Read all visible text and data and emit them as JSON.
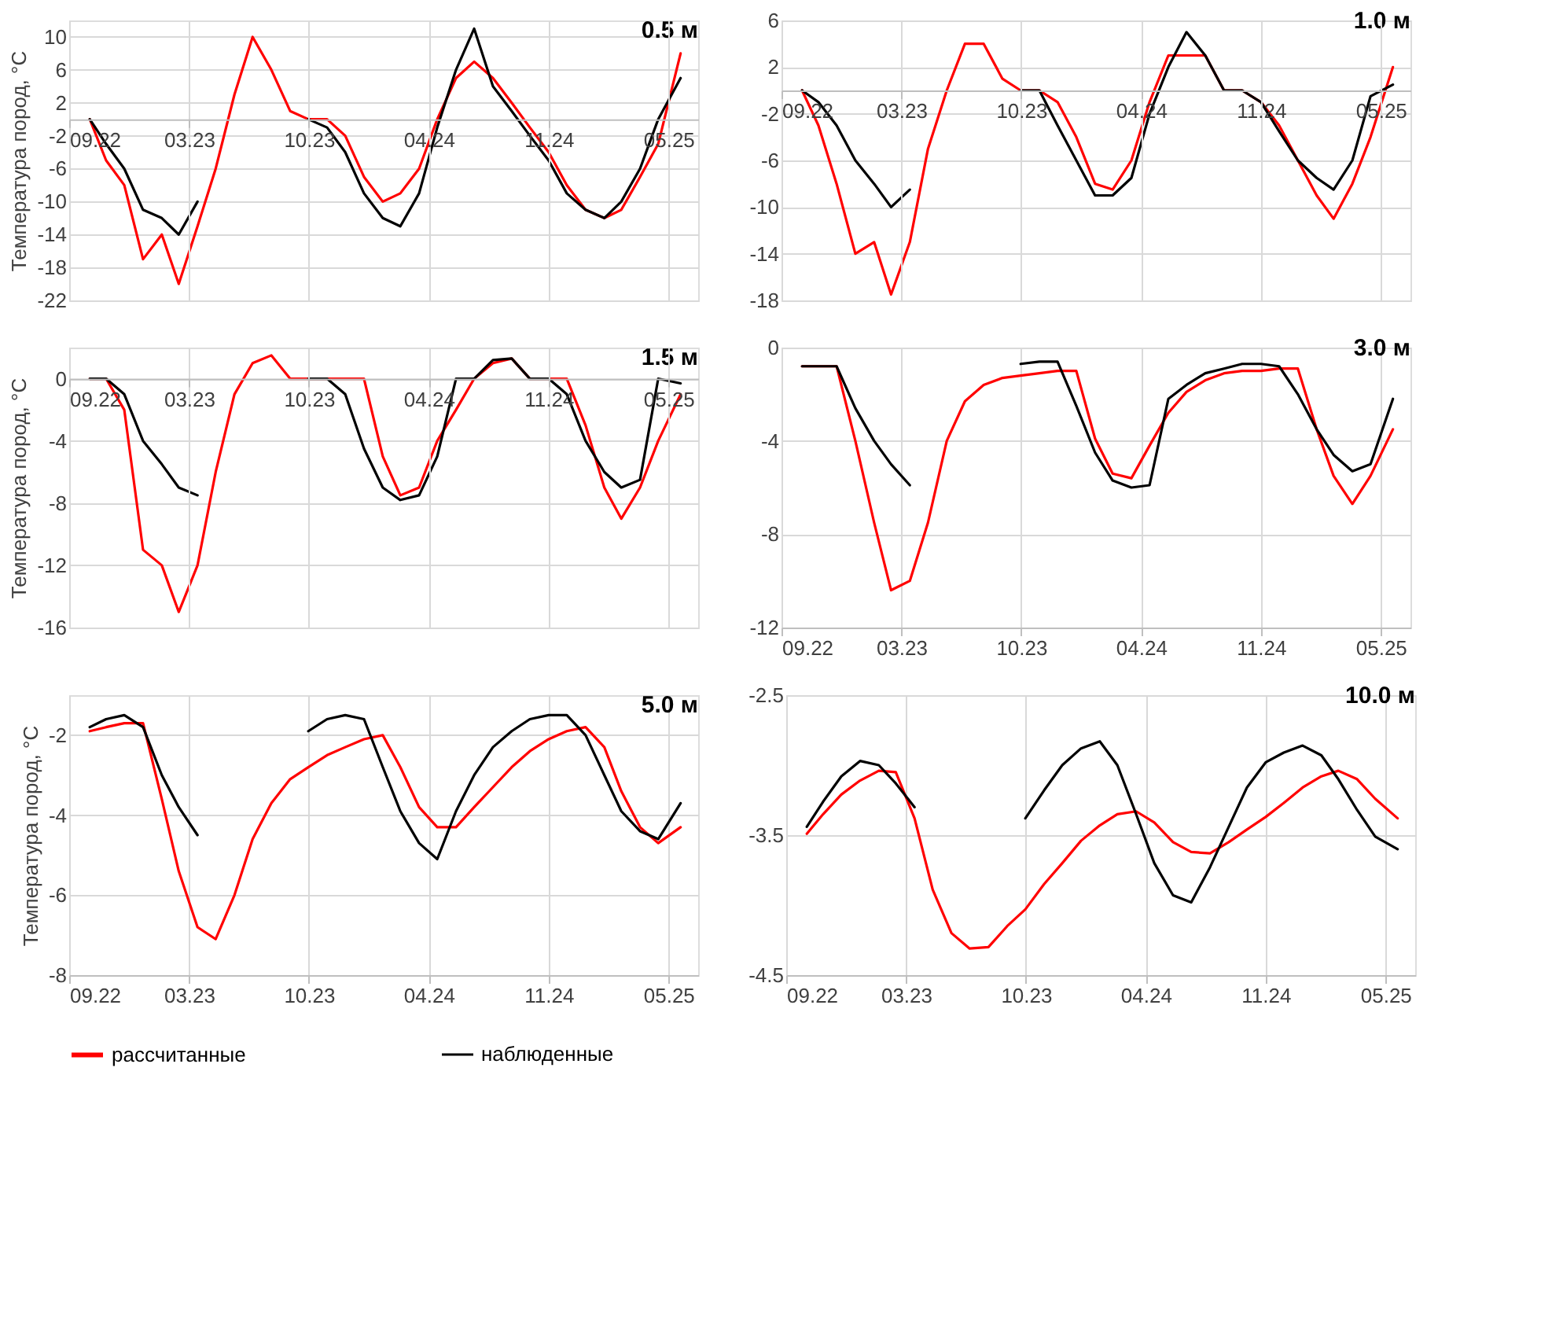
{
  "chart_data": [
    {
      "type": "line",
      "title": "0.5 м",
      "ylabel": "Температура пород, °C",
      "grid": true,
      "legend": "bottom",
      "x": [
        "2022-10-05",
        "2022-11-01",
        "2022-12-01",
        "2023-01-01",
        "2023-02-01",
        "2023-03-01",
        "2023-04-01",
        "2023-05-01",
        "2023-06-01",
        "2023-07-01",
        "2023-08-01",
        "2023-09-01",
        "2023-10-01",
        "2023-11-01",
        "2023-12-01",
        "2024-01-01",
        "2024-02-01",
        "2024-03-01",
        "2024-04-01",
        "2024-05-01",
        "2024-06-01",
        "2024-07-01",
        "2024-08-01",
        "2024-09-01",
        "2024-10-01",
        "2024-11-01",
        "2024-12-01",
        "2025-01-01",
        "2025-02-01",
        "2025-03-01",
        "2025-04-01",
        "2025-05-01",
        "2025-06-07"
      ],
      "xlim": [
        "2022-09-01",
        "2025-07-06"
      ],
      "xticks": [
        {
          "value": "2022-09-01",
          "label": "09.22"
        },
        {
          "value": "2023-03-18",
          "label": "03.23"
        },
        {
          "value": "2023-10-02",
          "label": "10.23"
        },
        {
          "value": "2024-04-17",
          "label": "04.24"
        },
        {
          "value": "2024-11-01",
          "label": "11.24"
        },
        {
          "value": "2025-05-18",
          "label": "05.25"
        }
      ],
      "ylim": [
        -22,
        12
      ],
      "yticks": [
        -22,
        -18,
        -14,
        -10,
        -6,
        -2,
        2,
        6,
        10
      ],
      "series": [
        {
          "name": "рассчитанные",
          "color": "#ff0000",
          "values": [
            0,
            -5,
            -8,
            -17,
            -14,
            -20,
            -13,
            -6,
            3,
            10,
            6,
            1,
            0,
            0,
            -2,
            -7,
            -10,
            -9,
            -6,
            0,
            5,
            7,
            5,
            2,
            -1,
            -4,
            -8,
            -11,
            -12,
            -11,
            -7,
            -3,
            8
          ]
        },
        {
          "name": "наблюденные",
          "color": "#000000",
          "values": [
            0,
            -3,
            -6,
            -11,
            -12,
            -14,
            -10,
            null,
            null,
            null,
            null,
            null,
            0,
            -1,
            -4,
            -9,
            -12,
            -13,
            -9,
            -1,
            6,
            11,
            4,
            1,
            -2,
            -5,
            -9,
            -11,
            -12,
            -10,
            -6,
            0,
            5
          ]
        }
      ]
    },
    {
      "type": "line",
      "title": "1.0 м",
      "grid": true,
      "legend": "bottom",
      "x": [
        "2022-10-05",
        "2022-11-01",
        "2022-12-01",
        "2023-01-01",
        "2023-02-01",
        "2023-03-01",
        "2023-04-01",
        "2023-05-01",
        "2023-06-01",
        "2023-07-01",
        "2023-08-01",
        "2023-09-01",
        "2023-10-01",
        "2023-11-01",
        "2023-12-01",
        "2024-01-01",
        "2024-02-01",
        "2024-03-01",
        "2024-04-01",
        "2024-05-01",
        "2024-06-01",
        "2024-07-01",
        "2024-08-01",
        "2024-09-01",
        "2024-10-01",
        "2024-11-01",
        "2024-12-01",
        "2025-01-01",
        "2025-02-01",
        "2025-03-01",
        "2025-04-01",
        "2025-05-01",
        "2025-06-07"
      ],
      "xlim": [
        "2022-09-01",
        "2025-07-06"
      ],
      "xticks": [
        {
          "value": "2022-09-01",
          "label": "09.22"
        },
        {
          "value": "2023-03-18",
          "label": "03.23"
        },
        {
          "value": "2023-10-02",
          "label": "10.23"
        },
        {
          "value": "2024-04-17",
          "label": "04.24"
        },
        {
          "value": "2024-11-01",
          "label": "11.24"
        },
        {
          "value": "2025-05-18",
          "label": "05.25"
        }
      ],
      "ylim": [
        -18,
        6
      ],
      "yticks": [
        -18,
        -14,
        -10,
        -6,
        -2,
        2,
        6
      ],
      "series": [
        {
          "name": "рассчитанные",
          "color": "#ff0000",
          "values": [
            0,
            -3,
            -8,
            -14,
            -13,
            -17.5,
            -13,
            -5,
            0,
            4,
            4,
            1,
            0,
            0,
            -1,
            -4,
            -8,
            -8.5,
            -6,
            -1,
            3,
            3,
            3,
            0,
            0,
            -1,
            -3,
            -6,
            -9,
            -11,
            -8,
            -4,
            2
          ]
        },
        {
          "name": "наблюденные",
          "color": "#000000",
          "values": [
            0,
            -1,
            -3,
            -6,
            -8,
            -10,
            -8.5,
            null,
            null,
            null,
            null,
            null,
            0,
            0,
            -3,
            -6,
            -9,
            -9,
            -7.5,
            -2,
            2,
            5,
            3,
            0,
            0,
            -1,
            -3.5,
            -6,
            -7.5,
            -8.5,
            -6,
            -0.5,
            0.5
          ]
        }
      ]
    },
    {
      "type": "line",
      "title": "1.5 м",
      "ylabel": "Температура пород, °C",
      "grid": true,
      "legend": "bottom",
      "x": [
        "2022-10-05",
        "2022-11-01",
        "2022-12-01",
        "2023-01-01",
        "2023-02-01",
        "2023-03-01",
        "2023-04-01",
        "2023-05-01",
        "2023-06-01",
        "2023-07-01",
        "2023-08-01",
        "2023-09-01",
        "2023-10-01",
        "2023-11-01",
        "2023-12-01",
        "2024-01-01",
        "2024-02-01",
        "2024-03-01",
        "2024-04-01",
        "2024-05-01",
        "2024-06-01",
        "2024-07-01",
        "2024-08-01",
        "2024-09-01",
        "2024-10-01",
        "2024-11-01",
        "2024-12-01",
        "2025-01-01",
        "2025-02-01",
        "2025-03-01",
        "2025-04-01",
        "2025-05-01",
        "2025-06-07"
      ],
      "xlim": [
        "2022-09-01",
        "2025-07-06"
      ],
      "xticks": [
        {
          "value": "2022-09-01",
          "label": "09.22"
        },
        {
          "value": "2023-03-18",
          "label": "03.23"
        },
        {
          "value": "2023-10-02",
          "label": "10.23"
        },
        {
          "value": "2024-04-17",
          "label": "04.24"
        },
        {
          "value": "2024-11-01",
          "label": "11.24"
        },
        {
          "value": "2025-05-18",
          "label": "05.25"
        }
      ],
      "ylim": [
        -16,
        2
      ],
      "yticks": [
        -16,
        -12,
        -8,
        -4,
        0
      ],
      "series": [
        {
          "name": "рассчитанные",
          "color": "#ff0000",
          "values": [
            0,
            0,
            -2,
            -11,
            -12,
            -15,
            -12,
            -6,
            -1,
            1,
            1.5,
            0,
            0,
            0,
            0,
            0,
            -5,
            -7.5,
            -7,
            -4,
            -2,
            0,
            1,
            1.3,
            0,
            0,
            0,
            -3,
            -7,
            -9,
            -7,
            -4,
            -1
          ]
        },
        {
          "name": "наблюденные",
          "color": "#000000",
          "values": [
            0,
            0,
            -1,
            -4,
            -5.5,
            -7,
            -7.5,
            null,
            null,
            null,
            null,
            null,
            0,
            0,
            -1,
            -4.5,
            -7,
            -7.8,
            -7.5,
            -5,
            0,
            0,
            1.2,
            1.3,
            0,
            0,
            -1,
            -4,
            -6,
            -7,
            -6.5,
            0,
            -0.3
          ]
        }
      ]
    },
    {
      "type": "line",
      "title": "3.0 м",
      "grid": true,
      "legend": "bottom",
      "x": [
        "2022-10-05",
        "2022-11-01",
        "2022-12-01",
        "2023-01-01",
        "2023-02-01",
        "2023-03-01",
        "2023-04-01",
        "2023-05-01",
        "2023-06-01",
        "2023-07-01",
        "2023-08-01",
        "2023-09-01",
        "2023-10-01",
        "2023-11-01",
        "2023-12-01",
        "2024-01-01",
        "2024-02-01",
        "2024-03-01",
        "2024-04-01",
        "2024-05-01",
        "2024-06-01",
        "2024-07-01",
        "2024-08-01",
        "2024-09-01",
        "2024-10-01",
        "2024-11-01",
        "2024-12-01",
        "2025-01-01",
        "2025-02-01",
        "2025-03-01",
        "2025-04-01",
        "2025-05-01",
        "2025-06-07"
      ],
      "xlim": [
        "2022-09-01",
        "2025-07-06"
      ],
      "xticks": [
        {
          "value": "2022-09-01",
          "label": "09.22"
        },
        {
          "value": "2023-03-18",
          "label": "03.23"
        },
        {
          "value": "2023-10-02",
          "label": "10.23"
        },
        {
          "value": "2024-04-17",
          "label": "04.24"
        },
        {
          "value": "2024-11-01",
          "label": "11.24"
        },
        {
          "value": "2025-05-18",
          "label": "05.25"
        }
      ],
      "ylim": [
        -12,
        0
      ],
      "yticks": [
        -12,
        -8,
        -4,
        0
      ],
      "series": [
        {
          "name": "рассчитанные",
          "color": "#ff0000",
          "values": [
            -0.8,
            -0.8,
            -0.8,
            -4,
            -7.5,
            -10.4,
            -10,
            -7.5,
            -4,
            -2.3,
            -1.6,
            -1.3,
            -1.2,
            -1.1,
            -1,
            -1,
            -3.9,
            -5.4,
            -5.6,
            -4.2,
            -2.8,
            -1.9,
            -1.4,
            -1.1,
            -1,
            -1,
            -0.9,
            -0.9,
            -3.5,
            -5.5,
            -6.7,
            -5.5,
            -3.5
          ]
        },
        {
          "name": "наблюденные",
          "color": "#000000",
          "values": [
            -0.8,
            -0.8,
            -0.8,
            -2.6,
            -4,
            -5,
            -5.9,
            null,
            null,
            null,
            null,
            null,
            -0.7,
            -0.6,
            -0.6,
            -2.5,
            -4.5,
            -5.7,
            -6,
            -5.9,
            -2.2,
            -1.6,
            -1.1,
            -0.9,
            -0.7,
            -0.7,
            -0.8,
            -2,
            -3.5,
            -4.6,
            -5.3,
            -5,
            -2.2
          ]
        }
      ]
    },
    {
      "type": "line",
      "title": "5.0 м",
      "ylabel": "Температура пород, °C",
      "grid": true,
      "legend": "bottom",
      "x": [
        "2022-10-05",
        "2022-11-01",
        "2022-12-01",
        "2023-01-01",
        "2023-02-01",
        "2023-03-01",
        "2023-04-01",
        "2023-05-01",
        "2023-06-01",
        "2023-07-01",
        "2023-08-01",
        "2023-09-01",
        "2023-10-01",
        "2023-11-01",
        "2023-12-01",
        "2024-01-01",
        "2024-02-01",
        "2024-03-01",
        "2024-04-01",
        "2024-05-01",
        "2024-06-01",
        "2024-07-01",
        "2024-08-01",
        "2024-09-01",
        "2024-10-01",
        "2024-11-01",
        "2024-12-01",
        "2025-01-01",
        "2025-02-01",
        "2025-03-01",
        "2025-04-01",
        "2025-05-01",
        "2025-06-07"
      ],
      "xlim": [
        "2022-09-01",
        "2025-07-06"
      ],
      "xticks": [
        {
          "value": "2022-09-01",
          "label": "09.22"
        },
        {
          "value": "2023-03-18",
          "label": "03.23"
        },
        {
          "value": "2023-10-02",
          "label": "10.23"
        },
        {
          "value": "2024-04-17",
          "label": "04.24"
        },
        {
          "value": "2024-11-01",
          "label": "11.24"
        },
        {
          "value": "2025-05-18",
          "label": "05.25"
        }
      ],
      "ylim": [
        -8,
        -1
      ],
      "yticks": [
        -8,
        -6,
        -4,
        -2
      ],
      "series": [
        {
          "name": "рассчитанные",
          "color": "#ff0000",
          "values": [
            -1.9,
            -1.8,
            -1.7,
            -1.7,
            -3.6,
            -5.4,
            -6.8,
            -7.1,
            -6,
            -4.6,
            -3.7,
            -3.1,
            -2.8,
            -2.5,
            -2.3,
            -2.1,
            -2,
            -2.8,
            -3.8,
            -4.3,
            -4.3,
            -3.8,
            -3.3,
            -2.8,
            -2.4,
            -2.1,
            -1.9,
            -1.8,
            -2.3,
            -3.4,
            -4.3,
            -4.7,
            -4.3
          ]
        },
        {
          "name": "наблюденные",
          "color": "#000000",
          "values": [
            -1.8,
            -1.6,
            -1.5,
            -1.8,
            -3,
            -3.8,
            -4.5,
            null,
            null,
            null,
            null,
            null,
            -1.9,
            -1.6,
            -1.5,
            -1.6,
            -2.8,
            -3.9,
            -4.7,
            -5.1,
            -3.9,
            -3,
            -2.3,
            -1.9,
            -1.6,
            -1.5,
            -1.5,
            -2,
            -3,
            -3.9,
            -4.4,
            -4.6,
            -3.7
          ]
        }
      ]
    },
    {
      "type": "line",
      "title": "10.0 м",
      "grid": true,
      "legend": "bottom",
      "x": [
        "2022-10-05",
        "2022-11-01",
        "2022-12-01",
        "2023-01-01",
        "2023-02-01",
        "2023-03-01",
        "2023-04-01",
        "2023-05-01",
        "2023-06-01",
        "2023-07-01",
        "2023-08-01",
        "2023-09-01",
        "2023-10-01",
        "2023-11-01",
        "2023-12-01",
        "2024-01-01",
        "2024-02-01",
        "2024-03-01",
        "2024-04-01",
        "2024-05-01",
        "2024-06-01",
        "2024-07-01",
        "2024-08-01",
        "2024-09-01",
        "2024-10-01",
        "2024-11-01",
        "2024-12-01",
        "2025-01-01",
        "2025-02-01",
        "2025-03-01",
        "2025-04-01",
        "2025-05-01",
        "2025-06-07"
      ],
      "xlim": [
        "2022-09-01",
        "2025-07-06"
      ],
      "xticks": [
        {
          "value": "2022-09-01",
          "label": "09.22"
        },
        {
          "value": "2023-03-18",
          "label": "03.23"
        },
        {
          "value": "2023-10-02",
          "label": "10.23"
        },
        {
          "value": "2024-04-17",
          "label": "04.24"
        },
        {
          "value": "2024-11-01",
          "label": "11.24"
        },
        {
          "value": "2025-05-18",
          "label": "05.25"
        }
      ],
      "ylim": [
        -4.5,
        -2.5
      ],
      "yticks": [
        -4.5,
        -3.5,
        -2.5
      ],
      "series": [
        {
          "name": "рассчитанные",
          "color": "#ff0000",
          "values": [
            -3.49,
            -3.35,
            -3.21,
            -3.11,
            -3.04,
            -3.05,
            -3.38,
            -3.89,
            -4.2,
            -4.31,
            -4.3,
            -4.15,
            -4.03,
            -3.85,
            -3.7,
            -3.54,
            -3.43,
            -3.35,
            -3.33,
            -3.41,
            -3.55,
            -3.62,
            -3.63,
            -3.55,
            -3.46,
            -3.37,
            -3.27,
            -3.16,
            -3.08,
            -3.04,
            -3.1,
            -3.24,
            -3.38
          ]
        },
        {
          "name": "наблюденные",
          "color": "#000000",
          "values": [
            -3.44,
            -3.26,
            -3.08,
            -2.97,
            -3.0,
            -3.13,
            -3.3,
            null,
            null,
            null,
            null,
            null,
            -3.38,
            -3.18,
            -3.0,
            -2.88,
            -2.83,
            -3.0,
            -3.35,
            -3.7,
            -3.93,
            -3.98,
            -3.73,
            -3.44,
            -3.16,
            -2.98,
            -2.91,
            -2.86,
            -2.93,
            -3.1,
            -3.32,
            -3.51,
            -3.6
          ]
        }
      ]
    }
  ]
}
